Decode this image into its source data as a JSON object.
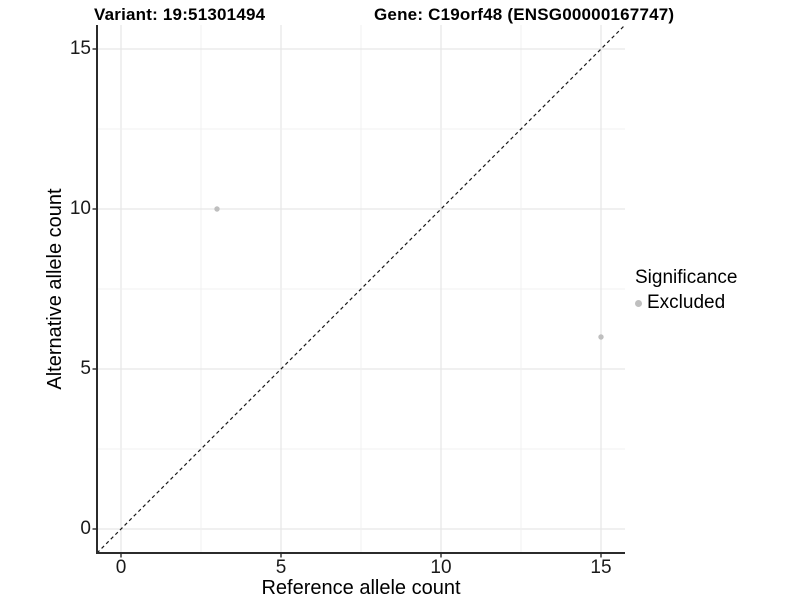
{
  "titles": {
    "variant": "Variant: 19:51301494",
    "gene": "Gene: C19orf48 (ENSG00000167747)"
  },
  "legend": {
    "title": "Significance",
    "items": [
      {
        "label": "Excluded",
        "color": "#bfbfbf"
      }
    ]
  },
  "chart_data": {
    "type": "scatter",
    "xlabel": "Reference allele count",
    "ylabel": "Alternative allele count",
    "xticks": [
      0,
      5,
      10,
      15
    ],
    "yticks": [
      0,
      5,
      10,
      15
    ],
    "xlim": [
      -0.75,
      15.75
    ],
    "ylim": [
      -0.75,
      15.75
    ],
    "grid": {
      "on": true,
      "step": 2.5,
      "major_color": "#e7e7e7",
      "minor_color": "#f0f0f0"
    },
    "series": [
      {
        "name": "Excluded",
        "color": "#bfbfbf",
        "marker_radius": 2.7,
        "points": [
          [
            3,
            10
          ],
          [
            15,
            6
          ]
        ]
      }
    ],
    "reference_line": {
      "slope": 1,
      "intercept": 0,
      "style": "dashed",
      "color": "#1a1a1a"
    },
    "axis_color": "#2b2b2b",
    "tick_label_color": "#1a1a1a",
    "legend_position": "right"
  }
}
